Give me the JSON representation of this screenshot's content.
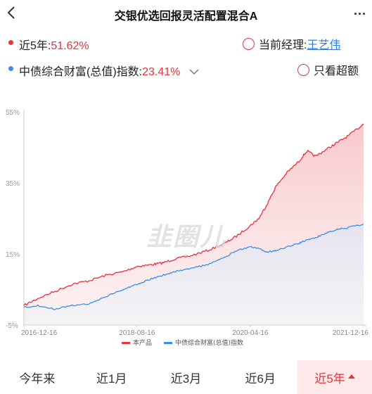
{
  "header": {
    "title": "交银优选回报灵活配置混合A"
  },
  "summary": {
    "product_label": "近5年:",
    "product_return": "51.62%",
    "index_label": "中债综合财富(总值)指数:",
    "index_return": "23.41%",
    "manager_label": "当前经理: ",
    "manager_name": "王艺伟",
    "excess_label": "只看超额"
  },
  "colors": {
    "product": "#e8323c",
    "index": "#3a8ee6",
    "accent": "#2a7de1"
  },
  "icons": {
    "back": "chevron-left-icon",
    "more": "more-dots-icon",
    "expand": "chevron-down-icon"
  },
  "watermark": "韭圈儿",
  "chart_data": {
    "type": "line",
    "x_ticks": [
      "2016-12-16",
      "2018-08-16",
      "2020-04-16",
      "2021-12-16"
    ],
    "y_ticks": [
      "55%",
      "35%",
      "15%",
      "-5%"
    ],
    "ylim": [
      -5,
      55
    ],
    "series": [
      {
        "name": "本产品",
        "color": "#e8323c",
        "x": [
          "2016-12-16",
          "2017-03-01",
          "2017-06-01",
          "2017-09-01",
          "2017-12-01",
          "2018-03-01",
          "2018-06-01",
          "2018-08-16",
          "2018-11-01",
          "2019-01-01",
          "2019-03-01",
          "2019-06-01",
          "2019-09-01",
          "2019-12-01",
          "2020-02-01",
          "2020-04-16",
          "2020-06-01",
          "2020-07-15",
          "2020-09-01",
          "2020-11-01",
          "2021-01-01",
          "2021-02-15",
          "2021-04-01",
          "2021-06-01",
          "2021-08-01",
          "2021-10-01",
          "2021-12-16"
        ],
        "values": [
          0.5,
          2.5,
          4.5,
          6.5,
          7.5,
          9,
          10,
          11.5,
          12,
          12.5,
          13.5,
          14.5,
          16,
          18,
          20,
          23,
          25,
          29,
          34,
          38,
          41,
          44,
          42.5,
          44.5,
          46.5,
          48.5,
          51.62
        ]
      },
      {
        "name": "中债综合财富(总值)指数",
        "color": "#3a8ee6",
        "x": [
          "2016-12-16",
          "2017-03-01",
          "2017-06-01",
          "2017-09-01",
          "2017-12-01",
          "2018-03-01",
          "2018-06-01",
          "2018-08-16",
          "2018-11-01",
          "2019-01-01",
          "2019-03-01",
          "2019-06-01",
          "2019-09-01",
          "2019-12-01",
          "2020-02-01",
          "2020-04-16",
          "2020-06-01",
          "2020-07-15",
          "2020-09-01",
          "2020-11-01",
          "2021-01-01",
          "2021-02-15",
          "2021-04-01",
          "2021-06-01",
          "2021-08-01",
          "2021-10-01",
          "2021-12-16"
        ],
        "values": [
          0,
          0.5,
          -0.5,
          0.5,
          1,
          3,
          5,
          6.5,
          8,
          9,
          10,
          11,
          12,
          14,
          16,
          17,
          16.5,
          15.5,
          16,
          17,
          18,
          19,
          19.5,
          21,
          22,
          22.5,
          23.41
        ]
      }
    ],
    "legend_position": "bottom-center",
    "grid": false
  },
  "tabs": [
    {
      "label": "今年来",
      "active": false
    },
    {
      "label": "近1月",
      "active": false
    },
    {
      "label": "近3月",
      "active": false
    },
    {
      "label": "近6月",
      "active": false
    },
    {
      "label": "近5年",
      "active": true
    }
  ]
}
